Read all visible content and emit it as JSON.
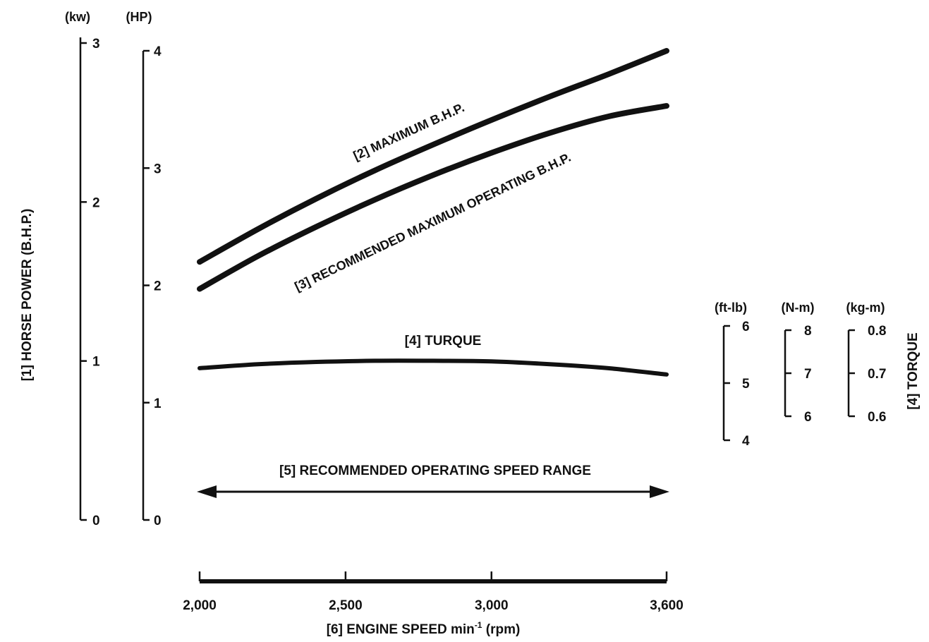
{
  "chart_data": {
    "type": "line",
    "x_axis": {
      "label_main": "[6] ENGINE SPEED min",
      "label_sup": "-1",
      "label_unit": " (rpm)",
      "range": [
        2000,
        3600
      ],
      "ticks": [
        2000,
        2500,
        3000,
        3600
      ],
      "tick_labels": [
        "2,000",
        "2,500",
        "3,000",
        "3,600"
      ]
    },
    "left_axes": {
      "title": "[1] HORSE POWER (B.H.P.)",
      "kw": {
        "unit": "(kw)",
        "range": [
          0,
          3
        ],
        "ticks": [
          0,
          1,
          2,
          3
        ],
        "tick_labels": [
          "0",
          "1",
          "2",
          "3"
        ]
      },
      "hp": {
        "unit": "(HP)",
        "range": [
          0,
          4
        ],
        "ticks": [
          0,
          1,
          2,
          3,
          4
        ],
        "tick_labels": [
          "0",
          "1",
          "2",
          "3",
          "4"
        ]
      }
    },
    "right_axes": {
      "title": "[4] TORQUE",
      "ftlb": {
        "unit": "(ft-lb)",
        "range": [
          4,
          6
        ],
        "ticks": [
          4,
          5,
          6
        ],
        "tick_labels": [
          "4",
          "5",
          "6"
        ]
      },
      "nm": {
        "unit": "(N-m)",
        "range": [
          6,
          8
        ],
        "ticks": [
          6,
          7,
          8
        ],
        "tick_labels": [
          "6",
          "7",
          "8"
        ]
      },
      "kgm": {
        "unit": "(kg-m)",
        "range": [
          0.6,
          0.8
        ],
        "ticks": [
          0.6,
          0.7,
          0.8
        ],
        "tick_labels": [
          "0.6",
          "0.7",
          "0.8"
        ]
      }
    },
    "series": [
      {
        "name": "[2] MAXIMUM B.H.P.",
        "axis": "hp",
        "x": [
          2000,
          2200,
          2400,
          2600,
          2800,
          3000,
          3200,
          3400,
          3600
        ],
        "y": [
          2.2,
          2.48,
          2.74,
          2.98,
          3.2,
          3.41,
          3.61,
          3.8,
          4.0
        ]
      },
      {
        "name": "[3] RECOMMENDED MAXIMUM OPERATING B.H.P.",
        "axis": "hp",
        "x": [
          2000,
          2200,
          2400,
          2600,
          2800,
          3000,
          3200,
          3400,
          3600
        ],
        "y": [
          1.97,
          2.25,
          2.5,
          2.73,
          2.94,
          3.13,
          3.3,
          3.44,
          3.53
        ]
      },
      {
        "name": "[4] TURQUE",
        "axis": "ftlb",
        "x": [
          2000,
          2200,
          2400,
          2600,
          2800,
          3000,
          3200,
          3400,
          3600
        ],
        "y": [
          5.26,
          5.33,
          5.37,
          5.39,
          5.39,
          5.38,
          5.33,
          5.26,
          5.15
        ]
      }
    ],
    "range_arrow": {
      "label": "[5] RECOMMENDED OPERATING SPEED RANGE",
      "from": 2000,
      "to": 3600
    }
  }
}
